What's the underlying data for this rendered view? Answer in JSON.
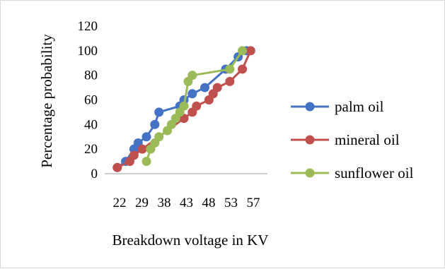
{
  "chart_data": {
    "type": "line",
    "xlabel": "Breakdown voltage in KV",
    "ylabel": "Percentage probability",
    "ylim": [
      0,
      120
    ],
    "yticks": [
      0,
      20,
      40,
      60,
      80,
      100,
      120
    ],
    "xticks": [
      "22",
      "29",
      "38",
      "43",
      "48",
      "53",
      "57"
    ],
    "grid": false,
    "legend": "right",
    "series": [
      {
        "name": "palm oil",
        "color": "#4472C4",
        "points": [
          [
            22,
            5
          ],
          [
            24,
            10
          ],
          [
            26,
            20
          ],
          [
            27,
            25
          ],
          [
            29,
            30
          ],
          [
            31,
            40
          ],
          [
            32,
            50
          ],
          [
            37,
            55
          ],
          [
            38,
            60
          ],
          [
            40,
            65
          ],
          [
            43,
            70
          ],
          [
            48,
            85
          ],
          [
            51,
            95
          ],
          [
            53,
            100
          ]
        ]
      },
      {
        "name": "mineral oil",
        "color": "#C0504D",
        "points": [
          [
            22,
            5
          ],
          [
            25,
            10
          ],
          [
            26,
            15
          ],
          [
            28,
            20
          ],
          [
            38,
            45
          ],
          [
            40,
            50
          ],
          [
            41,
            55
          ],
          [
            44,
            60
          ],
          [
            45,
            65
          ],
          [
            46,
            70
          ],
          [
            49,
            75
          ],
          [
            52,
            85
          ],
          [
            54,
            100
          ]
        ]
      },
      {
        "name": "sunflower oil",
        "color": "#9BBB59",
        "points": [
          [
            29,
            10
          ],
          [
            30,
            20
          ],
          [
            31,
            25
          ],
          [
            32,
            30
          ],
          [
            34,
            35
          ],
          [
            35,
            40
          ],
          [
            36,
            45
          ],
          [
            37,
            50
          ],
          [
            38,
            55
          ],
          [
            39,
            75
          ],
          [
            40,
            80
          ],
          [
            49,
            85
          ],
          [
            52,
            100
          ]
        ]
      }
    ]
  }
}
